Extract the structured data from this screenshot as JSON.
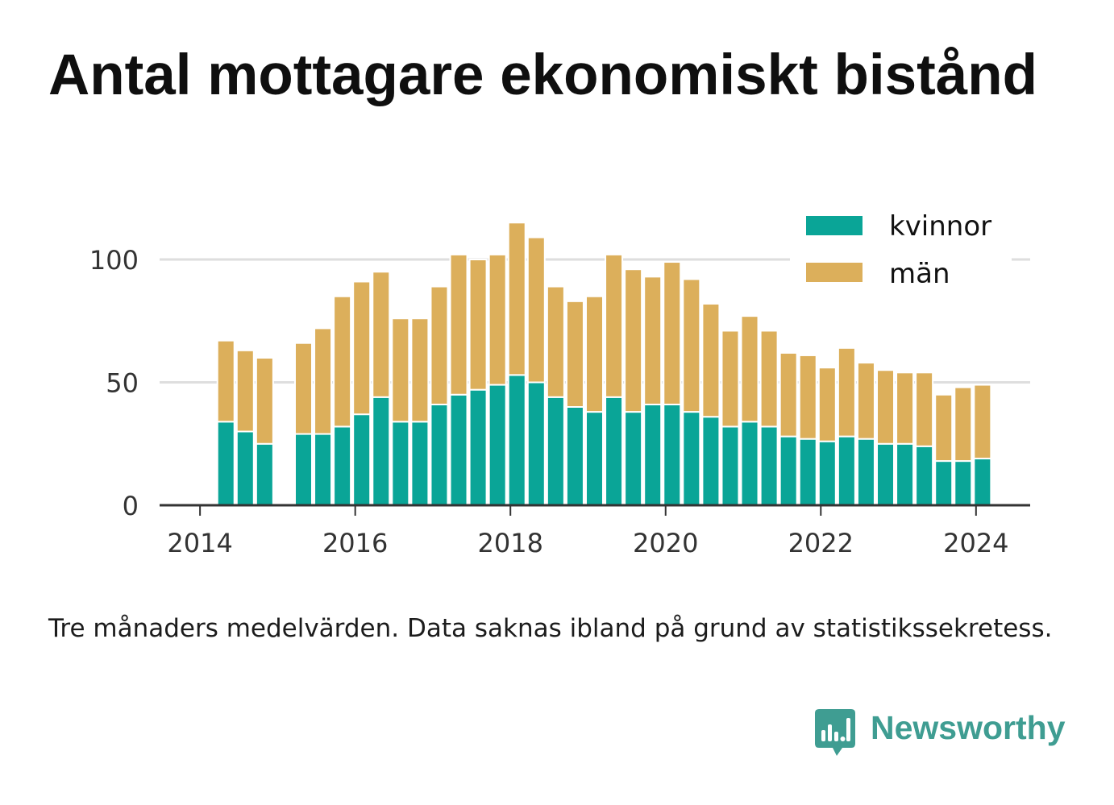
{
  "footnote": "Tre månaders medelvärden. Data saknas ibland på grund av statistikssekretess.",
  "brand": {
    "name": "Newsworthy",
    "icon": "newsworthy-logo-icon",
    "color": "#3f9d92"
  },
  "chart_data": {
    "type": "bar",
    "stacked": true,
    "title": "Antal mottagare ekonomiskt bistånd",
    "xlabel": "",
    "ylabel": "",
    "x": [
      "2014-05",
      "2014-08",
      "2014-11",
      "2015-05",
      "2015-08",
      "2015-11",
      "2016-02",
      "2016-05",
      "2016-08",
      "2016-11",
      "2017-02",
      "2017-05",
      "2017-08",
      "2017-11",
      "2018-02",
      "2018-05",
      "2018-08",
      "2018-11",
      "2019-02",
      "2019-05",
      "2019-08",
      "2019-11",
      "2020-02",
      "2020-05",
      "2020-08",
      "2020-11",
      "2021-02",
      "2021-05",
      "2021-08",
      "2021-11",
      "2022-02",
      "2022-05",
      "2022-08",
      "2022-11",
      "2023-02",
      "2023-05",
      "2023-08",
      "2023-11",
      "2024-02"
    ],
    "series": [
      {
        "name": "kvinnor",
        "color": "#0aa597",
        "values": [
          34,
          30,
          25,
          29,
          29,
          32,
          37,
          44,
          34,
          34,
          41,
          45,
          47,
          49,
          53,
          50,
          44,
          40,
          38,
          44,
          38,
          41,
          41,
          38,
          36,
          32,
          34,
          32,
          28,
          27,
          26,
          28,
          27,
          25,
          25,
          24,
          18,
          18,
          19
        ]
      },
      {
        "name": "män",
        "color": "#dcaf5b",
        "values": [
          33,
          33,
          35,
          37,
          43,
          53,
          54,
          51,
          42,
          42,
          48,
          57,
          53,
          53,
          62,
          59,
          45,
          43,
          47,
          58,
          58,
          52,
          58,
          54,
          46,
          39,
          43,
          39,
          34,
          34,
          30,
          36,
          31,
          30,
          29,
          30,
          27,
          30,
          30
        ]
      }
    ],
    "xticks": [
      "2014",
      "2016",
      "2018",
      "2020",
      "2022",
      "2024"
    ],
    "yticks": [
      0,
      50,
      100
    ],
    "xlim": [
      "2013-07",
      "2024-09"
    ],
    "ylim": [
      0,
      120
    ],
    "grid": true,
    "legend": "top-right"
  }
}
